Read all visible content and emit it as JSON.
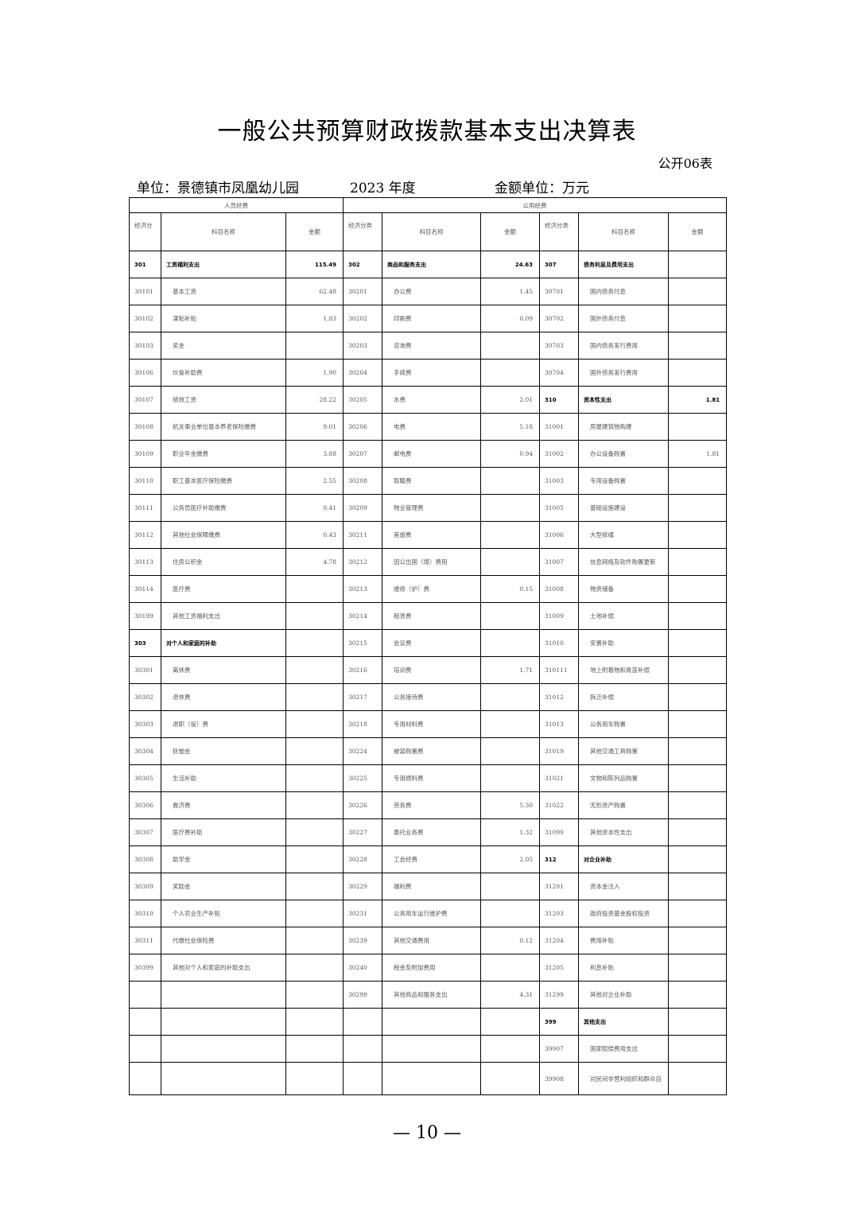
{
  "title": "一般公共预算财政拨款基本支出决算表",
  "form_no": "公开06表",
  "unit": "单位：景德镇市凤凰幼儿园",
  "year": "2023 年度",
  "amount_unit": "金额单位：万元",
  "groups": {
    "personnel": "人员经费",
    "public": "公用经费"
  },
  "headers": {
    "p_code": "经济分",
    "p_name": "科目名称",
    "p_amount": "金额",
    "g_code": "经济分类",
    "g_name": "科目名称",
    "g_amount": "金额",
    "c_code": "经济分类",
    "c_name": "科目名称",
    "c_amount": "金额"
  },
  "personnel_rows": [
    {
      "code": "301",
      "name": "工资福利支出",
      "amount": "115.49",
      "bold": true
    },
    {
      "code": "30101",
      "name": "基本工资",
      "amount": "62.48"
    },
    {
      "code": "30102",
      "name": "津贴补贴",
      "amount": "1.83"
    },
    {
      "code": "30103",
      "name": "奖金",
      "amount": ""
    },
    {
      "code": "30106",
      "name": "伙食补助费",
      "amount": "1.90"
    },
    {
      "code": "30107",
      "name": "绩效工资",
      "amount": "28.22"
    },
    {
      "code": "30108",
      "name": "机关事业单位基本养老保险缴费",
      "amount": "9.01"
    },
    {
      "code": "30109",
      "name": "职业年金缴费",
      "amount": "3.88"
    },
    {
      "code": "30110",
      "name": "职工基本医疗保险缴费",
      "amount": "2.55"
    },
    {
      "code": "30111",
      "name": "公务员医疗补助缴费",
      "amount": "0.41"
    },
    {
      "code": "30112",
      "name": "其他社会保障缴费",
      "amount": "0.43"
    },
    {
      "code": "30113",
      "name": "住房公积金",
      "amount": "4.78"
    },
    {
      "code": "30114",
      "name": "医疗费",
      "amount": ""
    },
    {
      "code": "30199",
      "name": "其他工资福利支出",
      "amount": ""
    },
    {
      "code": "303",
      "name": "对个人和家庭的补助",
      "amount": "",
      "bold": true
    },
    {
      "code": "30301",
      "name": "离休费",
      "amount": ""
    },
    {
      "code": "30302",
      "name": "退休费",
      "amount": ""
    },
    {
      "code": "30303",
      "name": "退职（役）费",
      "amount": ""
    },
    {
      "code": "30304",
      "name": "抚恤金",
      "amount": ""
    },
    {
      "code": "30305",
      "name": "生活补助",
      "amount": ""
    },
    {
      "code": "30306",
      "name": "救济费",
      "amount": ""
    },
    {
      "code": "30307",
      "name": "医疗费补助",
      "amount": ""
    },
    {
      "code": "30308",
      "name": "助学金",
      "amount": ""
    },
    {
      "code": "30309",
      "name": "奖励金",
      "amount": ""
    },
    {
      "code": "30310",
      "name": "个人农业生产补贴",
      "amount": ""
    },
    {
      "code": "30311",
      "name": "代缴社会保险费",
      "amount": ""
    },
    {
      "code": "30399",
      "name": "其他对个人和家庭的补助支出",
      "amount": ""
    }
  ],
  "goods_rows": [
    {
      "code": "302",
      "name": "商品和服务支出",
      "amount": "24.63",
      "bold": true
    },
    {
      "code": "30201",
      "name": "办公费",
      "amount": "1.45"
    },
    {
      "code": "30202",
      "name": "印刷费",
      "amount": "0.09"
    },
    {
      "code": "30203",
      "name": "咨询费",
      "amount": ""
    },
    {
      "code": "30204",
      "name": "手续费",
      "amount": ""
    },
    {
      "code": "30205",
      "name": "水费",
      "amount": "2.01"
    },
    {
      "code": "30206",
      "name": "电费",
      "amount": "5.18"
    },
    {
      "code": "30207",
      "name": "邮电费",
      "amount": "0.94"
    },
    {
      "code": "30208",
      "name": "取暖费",
      "amount": ""
    },
    {
      "code": "30209",
      "name": "物业管理费",
      "amount": ""
    },
    {
      "code": "30211",
      "name": "差旅费",
      "amount": ""
    },
    {
      "code": "30212",
      "name": "因公出国（境）费用",
      "amount": ""
    },
    {
      "code": "30213",
      "name": "维修（护）费",
      "amount": "0.15"
    },
    {
      "code": "30214",
      "name": "租赁费",
      "amount": ""
    },
    {
      "code": "30215",
      "name": "会议费",
      "amount": ""
    },
    {
      "code": "30216",
      "name": "培训费",
      "amount": "1.71"
    },
    {
      "code": "30217",
      "name": "公务接待费",
      "amount": ""
    },
    {
      "code": "30218",
      "name": "专用材料费",
      "amount": ""
    },
    {
      "code": "30224",
      "name": "被装购置费",
      "amount": ""
    },
    {
      "code": "30225",
      "name": "专用燃料费",
      "amount": ""
    },
    {
      "code": "30226",
      "name": "劳务费",
      "amount": "5.30"
    },
    {
      "code": "30227",
      "name": "委托业务费",
      "amount": "1.32"
    },
    {
      "code": "30228",
      "name": "工会经费",
      "amount": "2.05"
    },
    {
      "code": "30229",
      "name": "福利费",
      "amount": ""
    },
    {
      "code": "30231",
      "name": "公务用车运行维护费",
      "amount": ""
    },
    {
      "code": "30239",
      "name": "其他交通费用",
      "amount": "0.12"
    },
    {
      "code": "30240",
      "name": "税金及附加费用",
      "amount": ""
    },
    {
      "code": "30299",
      "name": "其他商品和服务支出",
      "amount": "4.31"
    }
  ],
  "capital_rows": [
    {
      "code": "307",
      "name": "债务利息及费用支出",
      "amount": "",
      "bold": true
    },
    {
      "code": "30701",
      "name": "国内债务付息",
      "amount": ""
    },
    {
      "code": "30702",
      "name": "国外债务付息",
      "amount": ""
    },
    {
      "code": "30703",
      "name": "国内债务发行费用",
      "amount": ""
    },
    {
      "code": "30704",
      "name": "国外债务发行费用",
      "amount": ""
    },
    {
      "code": "310",
      "name": "资本性支出",
      "amount": "1.81",
      "bold": true
    },
    {
      "code": "31001",
      "name": "房屋建筑物购建",
      "amount": ""
    },
    {
      "code": "31002",
      "name": "办公设备购置",
      "amount": "1.81"
    },
    {
      "code": "31003",
      "name": "专用设备购置",
      "amount": ""
    },
    {
      "code": "31005",
      "name": "基础设施建设",
      "amount": ""
    },
    {
      "code": "31006",
      "name": "大型修缮",
      "amount": ""
    },
    {
      "code": "31007",
      "name": "信息网络及软件购置更新",
      "amount": ""
    },
    {
      "code": "31008",
      "name": "物资储备",
      "amount": ""
    },
    {
      "code": "31009",
      "name": "土地补偿",
      "amount": ""
    },
    {
      "code": "31010",
      "name": "安置补助",
      "amount": ""
    },
    {
      "code": "310111",
      "name": "地上附着物和青苗补偿",
      "amount": ""
    },
    {
      "code": "31012",
      "name": "拆迁补偿",
      "amount": ""
    },
    {
      "code": "31013",
      "name": "公务用车购置",
      "amount": ""
    },
    {
      "code": "31019",
      "name": "其他交通工具购置",
      "amount": ""
    },
    {
      "code": "31021",
      "name": "文物和陈列品购置",
      "amount": ""
    },
    {
      "code": "31022",
      "name": "无形资产购置",
      "amount": ""
    },
    {
      "code": "31099",
      "name": "其他资本性支出",
      "amount": ""
    },
    {
      "code": "312",
      "name": "对企业补助",
      "amount": "",
      "bold": true
    },
    {
      "code": "31201",
      "name": "资本金注入",
      "amount": ""
    },
    {
      "code": "31203",
      "name": "政府投资基金股权投资",
      "amount": ""
    },
    {
      "code": "31204",
      "name": "费用补贴",
      "amount": ""
    },
    {
      "code": "31205",
      "name": "利息补贴",
      "amount": ""
    },
    {
      "code": "31299",
      "name": "其他对企业补助",
      "amount": ""
    },
    {
      "code": "399",
      "name": "其他支出",
      "amount": "",
      "bold": true
    },
    {
      "code": "39907",
      "name": "国家赔偿费用支出",
      "amount": ""
    },
    {
      "code": "39908",
      "name": "对民间非营利组织和群众自",
      "amount": ""
    }
  ],
  "page_number": "— 10 —"
}
